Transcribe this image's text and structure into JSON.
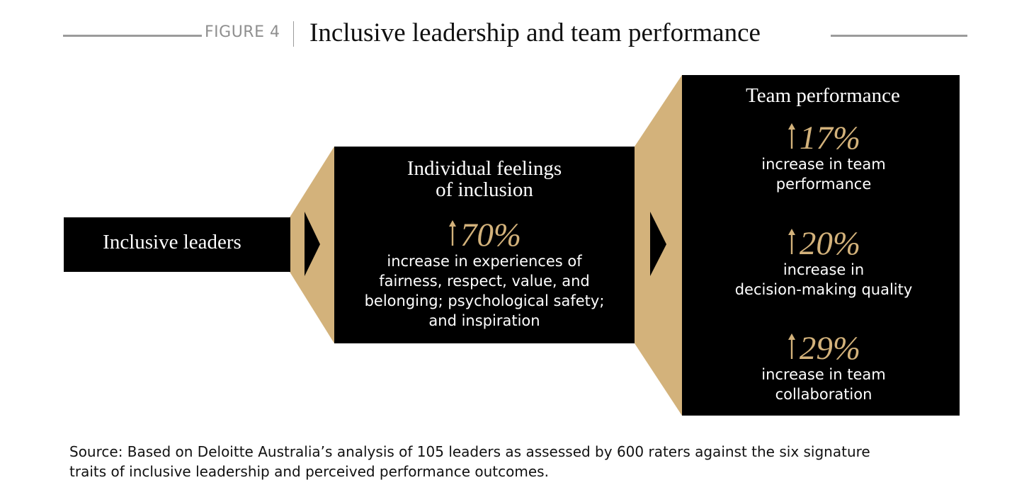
{
  "figure": {
    "label": "FIGURE 4",
    "title": "Inclusive leadership and team performance"
  },
  "colors": {
    "gold": "#d3b27b",
    "black": "#000000",
    "rule": "#9b9b9b"
  },
  "stages": {
    "leaders": {
      "title": "Inclusive leaders"
    },
    "inclusion": {
      "title_line1": "Individual feelings",
      "title_line2": "of inclusion",
      "stat": {
        "icon": "up-arrow-icon",
        "value": "70%",
        "desc": [
          "increase in experiences of",
          "fairness, respect, value, and",
          "belonging; psychological safety;",
          "and inspiration"
        ]
      }
    },
    "performance": {
      "title": "Team performance",
      "stats": [
        {
          "icon": "up-arrow-icon",
          "value": "17%",
          "desc": [
            "increase in team",
            "performance"
          ]
        },
        {
          "icon": "up-arrow-icon",
          "value": "20%",
          "desc": [
            "increase in",
            "decision-making quality"
          ]
        },
        {
          "icon": "up-arrow-icon",
          "value": "29%",
          "desc": [
            "increase in team",
            "collaboration"
          ]
        }
      ]
    }
  },
  "source": {
    "line1": "Source: Based on Deloitte Australia’s analysis of 105 leaders as assessed by 600 raters against the six signature",
    "line2": "traits of inclusive leadership and perceived performance outcomes."
  }
}
